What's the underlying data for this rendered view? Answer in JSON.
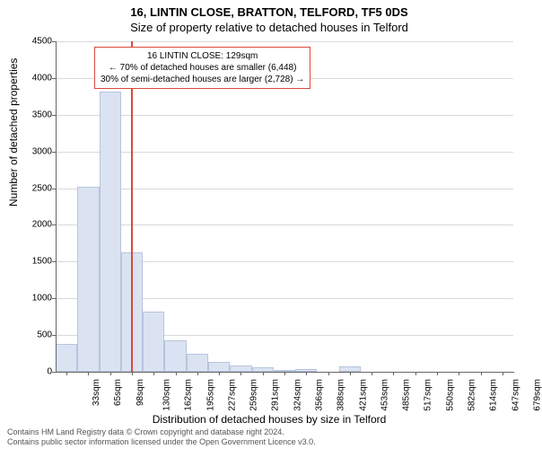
{
  "title": {
    "address": "16, LINTIN CLOSE, BRATTON, TELFORD, TF5 0DS",
    "subtitle": "Size of property relative to detached houses in Telford"
  },
  "axes": {
    "ylabel": "Number of detached properties",
    "xlabel": "Distribution of detached houses by size in Telford",
    "ylim": [
      0,
      4500
    ],
    "ytick_step": 500,
    "label_fontsize": 12,
    "tick_fontsize": 10
  },
  "chart": {
    "type": "histogram",
    "bar_fill": "#dbe3f2",
    "bar_stroke": "#b7c4de",
    "grid_color": "#d7d9dd",
    "marker_color": "#d94a3a",
    "background_color": "#ffffff",
    "marker_x_sqm": 129,
    "x_start": 17,
    "bin_width": 32.5,
    "categories": [
      "33sqm",
      "65sqm",
      "98sqm",
      "130sqm",
      "162sqm",
      "195sqm",
      "227sqm",
      "259sqm",
      "291sqm",
      "324sqm",
      "356sqm",
      "388sqm",
      "421sqm",
      "453sqm",
      "485sqm",
      "517sqm",
      "550sqm",
      "582sqm",
      "614sqm",
      "647sqm",
      "679sqm"
    ],
    "values": [
      380,
      2520,
      3820,
      1630,
      820,
      430,
      240,
      130,
      80,
      60,
      30,
      40,
      0,
      70,
      0,
      0,
      0,
      0,
      0,
      0,
      0
    ]
  },
  "annotation": {
    "line1": "16 LINTIN CLOSE: 129sqm",
    "line2": "← 70% of detached houses are smaller (6,448)",
    "line3": "30% of semi-detached houses are larger (2,728) →",
    "border_color": "#d94a3a",
    "fontsize": 10
  },
  "footer": {
    "line1": "Contains HM Land Registry data © Crown copyright and database right 2024.",
    "line2": "Contains public sector information licensed under the Open Government Licence v3.0."
  }
}
